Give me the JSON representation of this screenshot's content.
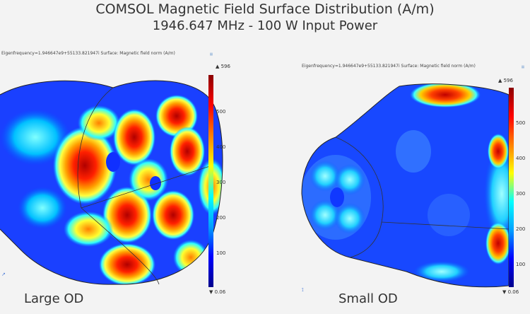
{
  "title": "COMSOL Magnetic Field Surface Distribution (A/m)",
  "subtitle": "1946.647 MHz - 100 W Input Power",
  "left": {
    "header": "Eigenfrequency=1.946647e9+55133.821947i   Surface: Magnetic field norm (A/m)",
    "caption": "Large OD",
    "colorbar": {
      "max": "▲ 596",
      "min": "▼ 0.06",
      "ticks": [
        "500",
        "400",
        "300",
        "200",
        "100"
      ]
    }
  },
  "right": {
    "header": "Eigenfrequency=1.946647e9+55133.821947i   Surface: Magnetic field norm (A/m)",
    "caption": "Small OD",
    "colorbar": {
      "max": "▲ 596",
      "min": "▼ 0.06",
      "ticks": [
        "500",
        "400",
        "300",
        "200",
        "100"
      ]
    }
  },
  "colors": {
    "low": "#0000ff",
    "mid": "#00ffff",
    "high": "#ff0000"
  }
}
